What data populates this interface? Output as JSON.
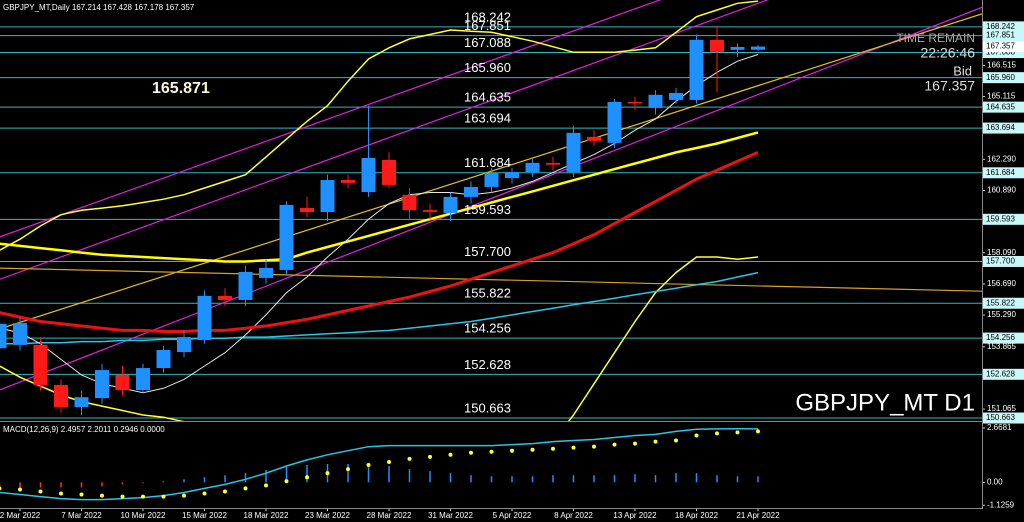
{
  "chart_data": [
    {
      "type": "candlestick",
      "title": "GBPJPY_MT,Daily  167.214 167.428 167.178 167.357",
      "categories": [
        null,
        "2 Mar 2022",
        null,
        null,
        "7 Mar 2022",
        null,
        null,
        "10 Mar 2022",
        null,
        null,
        "15 Mar 2022",
        null,
        null,
        "18 Mar 2022",
        null,
        null,
        "23 Mar 2022",
        null,
        null,
        "28 Mar 2022",
        null,
        null,
        "31 Mar 2022",
        null,
        null,
        "5 Apr 2022",
        null,
        null,
        "8 Apr 2022",
        null,
        null,
        "13 Apr 2022",
        null,
        null,
        "18 Apr 2022",
        null,
        null,
        "21 Apr 2022"
      ],
      "open": [
        153.8,
        153.95,
        153.95,
        152.15,
        151.16,
        151.56,
        152.6,
        151.92,
        152.91,
        153.63,
        154.17,
        156.15,
        155.97,
        156.96,
        157.32,
        160.1,
        159.92,
        161.36,
        160.82,
        162.26,
        160.69,
        160.01,
        159.88,
        160.6,
        161.05,
        161.45,
        161.72,
        162.13,
        161.72,
        163.3,
        163.03,
        164.87,
        164.6,
        164.96,
        164.96,
        167.66,
        167.21,
        167.214
      ],
      "high": [
        155.3,
        155.2,
        154.3,
        152.4,
        151.9,
        153.1,
        153.0,
        153.1,
        153.9,
        154.6,
        156.4,
        156.5,
        157.5,
        157.8,
        160.4,
        160.6,
        161.6,
        161.6,
        164.7,
        162.6,
        161.0,
        160.3,
        160.8,
        161.3,
        161.9,
        161.9,
        162.3,
        162.4,
        163.8,
        163.6,
        165.0,
        165.1,
        165.4,
        165.5,
        167.9,
        168.3,
        167.5,
        167.428
      ],
      "low": [
        153.0,
        153.7,
        151.9,
        150.9,
        150.8,
        151.3,
        151.7,
        151.8,
        152.7,
        153.4,
        154.0,
        155.7,
        155.7,
        156.7,
        157.1,
        159.7,
        159.5,
        161.0,
        160.6,
        161.0,
        159.6,
        159.6,
        159.5,
        160.3,
        160.8,
        161.2,
        161.5,
        161.8,
        161.5,
        162.9,
        162.8,
        164.5,
        164.3,
        164.8,
        164.8,
        165.3,
        166.9,
        167.178
      ],
      "close": [
        154.9,
        154.93,
        152.15,
        151.16,
        151.6,
        152.82,
        151.92,
        152.91,
        153.72,
        154.3,
        156.15,
        155.97,
        157.23,
        157.41,
        160.24,
        159.92,
        161.36,
        161.23,
        162.35,
        161.14,
        160.01,
        159.93,
        160.6,
        161.05,
        161.68,
        161.72,
        162.13,
        162.05,
        163.48,
        163.12,
        164.87,
        164.8,
        165.19,
        165.27,
        167.66,
        167.12,
        167.34,
        167.357
      ],
      "up_color": "#1e90ff",
      "down_color": "#ff1a1a",
      "ylim": [
        150.53,
        169.45
      ],
      "yticks": [
        166.515,
        165.115,
        {
          "value": 162.29,
          "label": "162.290"
        },
        {
          "value": 160.89,
          "label": "160.890"
        },
        {
          "value": 158.09,
          "label": "158.090"
        },
        {
          "value": 156.69,
          "label": "156.690"
        },
        {
          "value": 155.29,
          "label": "155.290"
        },
        153.865,
        151.065
      ],
      "levels": [
        168.242,
        167.851,
        167.088,
        {
          "value": 165.96,
          "label": "165.960"
        },
        164.635,
        163.694,
        161.684,
        159.593,
        {
          "value": 157.7,
          "label": "157.700"
        },
        155.822,
        154.256,
        152.628,
        150.663
      ],
      "level_color": "#2fb8c0",
      "overlays": [
        {
          "color": "#ffff33",
          "width": 1.5,
          "values": [
            158.2,
            158.7,
            159.3,
            159.8,
            160.0,
            160.1,
            160.2,
            160.35,
            160.5,
            160.7,
            161.0,
            161.3,
            161.6,
            162.4,
            163.2,
            164.0,
            164.7,
            165.8,
            166.8,
            167.3,
            167.7,
            167.9,
            168.1,
            168.05,
            168.0,
            167.8,
            167.6,
            167.35,
            167.1,
            167.1,
            167.1,
            167.2,
            167.3,
            168.0,
            168.7,
            169.0,
            169.3,
            169.4
          ]
        },
        {
          "color": "#ffff33",
          "width": 1.5,
          "values": [
            153.0,
            152.5,
            152.1,
            151.7,
            151.4,
            151.2,
            151.0,
            150.8,
            150.7,
            150.5,
            150.3,
            150.2,
            150.1,
            149.9,
            149.5,
            149.0,
            148.6,
            148.2,
            147.8,
            147.5,
            147.3,
            147.1,
            147.0,
            147.0,
            147.2,
            147.8,
            148.6,
            149.6,
            150.8,
            152.2,
            153.6,
            155.0,
            156.3,
            157.2,
            157.9,
            157.9,
            157.8,
            157.9
          ]
        },
        {
          "color": "#ffff00",
          "width": 2.5,
          "values": [
            158.5,
            158.4,
            158.3,
            158.2,
            158.1,
            158.0,
            157.95,
            157.9,
            157.85,
            157.8,
            157.75,
            157.7,
            157.7,
            157.75,
            157.8,
            158.1,
            158.35,
            158.6,
            158.85,
            159.1,
            159.35,
            159.6,
            159.85,
            160.1,
            160.35,
            160.6,
            160.85,
            161.1,
            161.35,
            161.6,
            161.85,
            162.1,
            162.35,
            162.6,
            162.8,
            163.0,
            163.25,
            163.5
          ]
        },
        {
          "color": "#29c5e6",
          "width": 1.5,
          "values": [
            154.0,
            154.0,
            154.05,
            154.05,
            154.1,
            154.1,
            154.15,
            154.15,
            154.2,
            154.2,
            154.25,
            154.25,
            154.3,
            154.3,
            154.35,
            154.4,
            154.45,
            154.5,
            154.55,
            154.6,
            154.7,
            154.8,
            154.9,
            155.0,
            155.15,
            155.3,
            155.45,
            155.6,
            155.75,
            155.9,
            156.05,
            156.2,
            156.35,
            156.5,
            156.65,
            156.8,
            157.0,
            157.2
          ]
        },
        {
          "color": "#e6e6e6",
          "width": 1,
          "values": [
            154.7,
            154.5,
            154.0,
            153.3,
            152.6,
            152.2,
            152.0,
            151.8,
            152.0,
            152.4,
            153.0,
            153.6,
            154.4,
            155.3,
            156.3,
            157.0,
            157.9,
            158.7,
            159.6,
            160.3,
            160.7,
            160.8,
            160.8,
            160.7,
            160.8,
            161.0,
            161.3,
            161.7,
            162.1,
            162.5,
            163.0,
            163.6,
            164.1,
            164.9,
            165.6,
            166.2,
            166.7,
            167.0
          ]
        },
        {
          "color": "#ee1111",
          "width": 3,
          "values": [
            155.4,
            155.2,
            155.0,
            154.9,
            154.8,
            154.7,
            154.6,
            154.6,
            154.55,
            154.55,
            154.6,
            154.6,
            154.7,
            154.8,
            154.95,
            155.1,
            155.3,
            155.5,
            155.7,
            155.9,
            156.1,
            156.35,
            156.6,
            156.9,
            157.2,
            157.5,
            157.8,
            158.1,
            158.5,
            158.9,
            159.4,
            159.9,
            160.4,
            160.9,
            161.4,
            161.8,
            162.2,
            162.6
          ]
        }
      ],
      "trendlines": [
        {
          "color": "#e020e0",
          "points": [
            [
              0,
              158.8
            ],
            [
              32.2,
              169.45
            ]
          ]
        },
        {
          "color": "#e020e0",
          "points": [
            [
              20,
              159.1
            ],
            [
              37,
              165.2
            ]
          ]
        },
        {
          "color": "#e020e0",
          "points": [
            [
              20,
              163.6
            ],
            [
              37,
              169.3
            ]
          ]
        },
        {
          "color": "#e8c020",
          "points": [
            [
              15,
              159.1
            ],
            [
              37,
              165.6
            ]
          ]
        },
        {
          "color": "#d8a020",
          "points": [
            [
              0,
              157.4
            ],
            [
              37,
              156.6
            ]
          ]
        }
      ],
      "price_label": "165.871",
      "time_remain_label": "TIME REMAIN",
      "time_remain": "22:26:46",
      "bid_label": "Bid",
      "bid": 167.357,
      "symbol_label": "GBPJPY_MT D1"
    },
    {
      "type": "macd",
      "title": "MACD(12,26,9) 2.4957 2.2011 0.2946 0.0000",
      "ylim": [
        -1.26,
        2.96
      ],
      "yticks": [
        2.6681,
        {
          "value": 0,
          "label": "0.00"
        },
        -1.1259
      ],
      "series": [
        {
          "kind": "histogram",
          "color": "#1e90ff",
          "negative_color": "#ff3030",
          "values": [
            -0.2,
            -0.25,
            -0.25,
            -0.25,
            -0.25,
            -0.2,
            -0.1,
            -0.05,
            0.05,
            0.15,
            0.25,
            0.35,
            0.45,
            0.6,
            0.75,
            0.85,
            0.9,
            0.9,
            0.9,
            0.8,
            0.65,
            0.55,
            0.45,
            0.35,
            0.3,
            0.3,
            0.3,
            0.35,
            0.35,
            0.35,
            0.35,
            0.4,
            0.35,
            0.45,
            0.45,
            0.35,
            0.3,
            0.2946
          ]
        },
        {
          "kind": "line",
          "color": "#29c5e6",
          "values": [
            -0.5,
            -0.6,
            -0.7,
            -0.8,
            -0.85,
            -0.85,
            -0.8,
            -0.75,
            -0.65,
            -0.5,
            -0.3,
            -0.1,
            0.15,
            0.45,
            0.8,
            1.1,
            1.35,
            1.55,
            1.75,
            1.8,
            1.8,
            1.8,
            1.8,
            1.8,
            1.8,
            1.85,
            1.9,
            2.0,
            2.05,
            2.1,
            2.2,
            2.3,
            2.35,
            2.5,
            2.6,
            2.62,
            2.63,
            2.62
          ]
        },
        {
          "kind": "dots",
          "color": "#ffff33",
          "values": [
            -0.3,
            -0.35,
            -0.45,
            -0.55,
            -0.6,
            -0.65,
            -0.7,
            -0.7,
            -0.7,
            -0.65,
            -0.55,
            -0.45,
            -0.3,
            -0.15,
            0.05,
            0.25,
            0.45,
            0.65,
            0.85,
            1.0,
            1.15,
            1.25,
            1.35,
            1.45,
            1.5,
            1.55,
            1.6,
            1.65,
            1.7,
            1.75,
            1.85,
            1.9,
            2.0,
            2.05,
            2.3,
            2.4,
            2.45,
            2.5
          ]
        }
      ]
    }
  ]
}
